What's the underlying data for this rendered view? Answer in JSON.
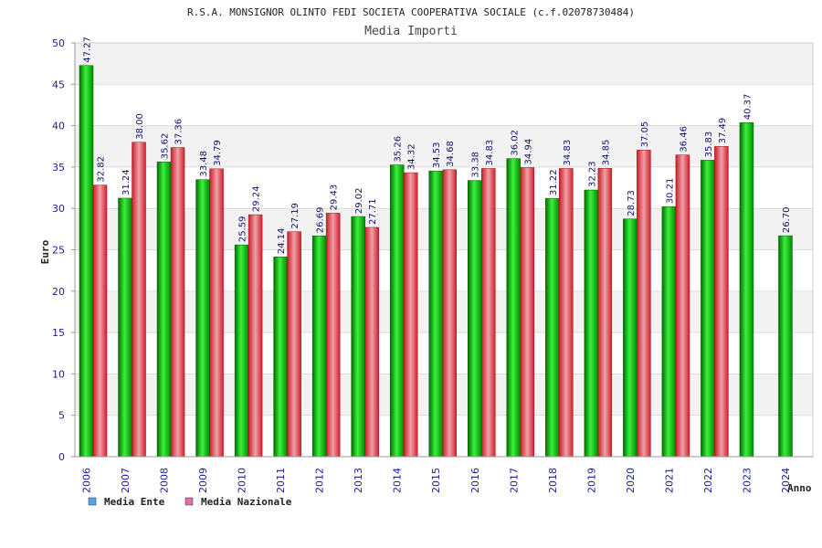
{
  "chart_data": {
    "type": "bar",
    "title": "R.S.A. MONSIGNOR OLINTO FEDI SOCIETA COOPERATIVA SOCIALE (c.f.02078730484)",
    "subtitle": "Media Importi",
    "ylabel": "Euro",
    "xlabel": "Anno",
    "ylim": [
      0,
      50
    ],
    "yticks": [
      0,
      5,
      10,
      15,
      20,
      25,
      30,
      35,
      40,
      45,
      50
    ],
    "categories": [
      "2006",
      "2007",
      "2008",
      "2009",
      "2010",
      "2011",
      "2012",
      "2013",
      "2014",
      "2015",
      "2016",
      "2017",
      "2018",
      "2019",
      "2020",
      "2021",
      "2022",
      "2023",
      "2024"
    ],
    "series": [
      {
        "name": "Media Ente",
        "color": "#00b000",
        "values": [
          47.27,
          31.24,
          35.62,
          33.48,
          25.59,
          24.14,
          26.69,
          29.02,
          35.26,
          34.53,
          33.38,
          36.02,
          31.22,
          32.23,
          28.73,
          30.21,
          35.83,
          40.37,
          26.7
        ],
        "labels": [
          "47.27",
          "31.24",
          "35.62",
          "33.48",
          "25.59",
          "24.14",
          "26.69",
          "29.02",
          "35.26",
          "34.53",
          "33.38",
          "36.02",
          "31.22",
          "32.23",
          "28.73",
          "30.21",
          "35.83",
          "40.37",
          "26.70"
        ]
      },
      {
        "name": "Media Nazionale",
        "color": "#e0303a",
        "values": [
          32.82,
          38.0,
          37.36,
          34.79,
          29.24,
          27.19,
          29.43,
          27.71,
          34.32,
          34.68,
          34.83,
          34.94,
          34.83,
          34.85,
          37.05,
          36.46,
          37.49,
          null,
          null
        ],
        "labels": [
          "32.82",
          "38.00",
          "37.36",
          "34.79",
          "29.24",
          "27.19",
          "29.43",
          "27.71",
          "34.32",
          "34.68",
          "34.83",
          "34.94",
          "34.83",
          "34.85",
          "37.05",
          "36.46",
          "37.49",
          null,
          null
        ]
      }
    ],
    "legend": [
      {
        "name": "Media Ente",
        "swatch": "#5aa0e8"
      },
      {
        "name": "Media Nazionale",
        "swatch": "#e070a8"
      }
    ],
    "legend_position": "bottom-left",
    "grid": true
  }
}
